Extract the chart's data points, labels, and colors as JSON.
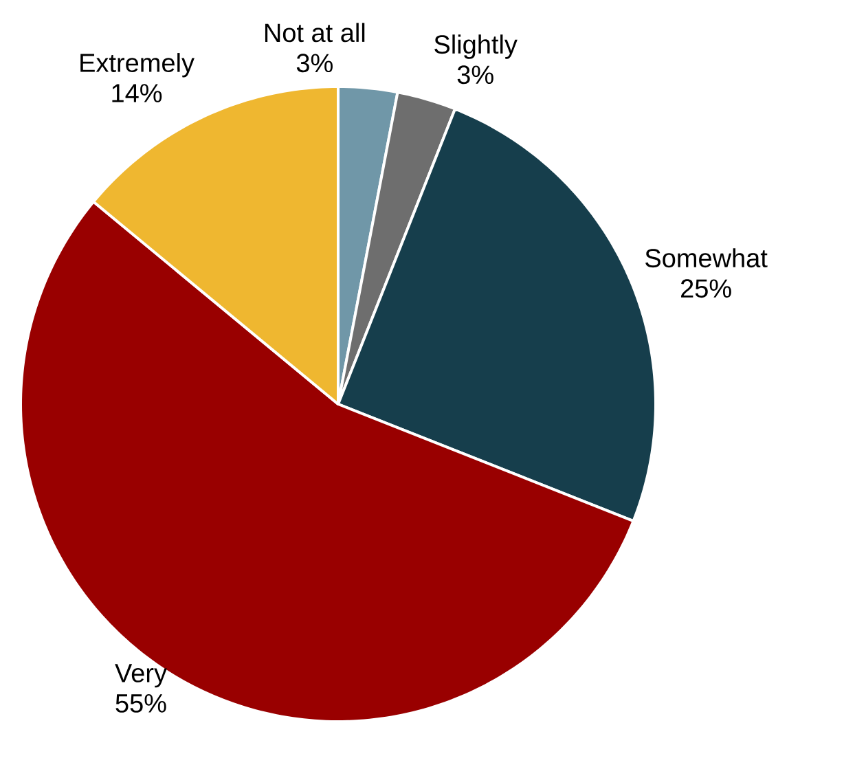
{
  "chart_data": {
    "type": "pie",
    "categories": [
      "Not at all",
      "Slightly",
      "Somewhat",
      "Very",
      "Extremely"
    ],
    "values": [
      3,
      3,
      25,
      55,
      14
    ],
    "value_labels": [
      "3%",
      "3%",
      "25%",
      "55%",
      "14%"
    ],
    "colors": [
      "#7097a8",
      "#6e6e6e",
      "#163e4c",
      "#990000",
      "#efb730"
    ]
  }
}
